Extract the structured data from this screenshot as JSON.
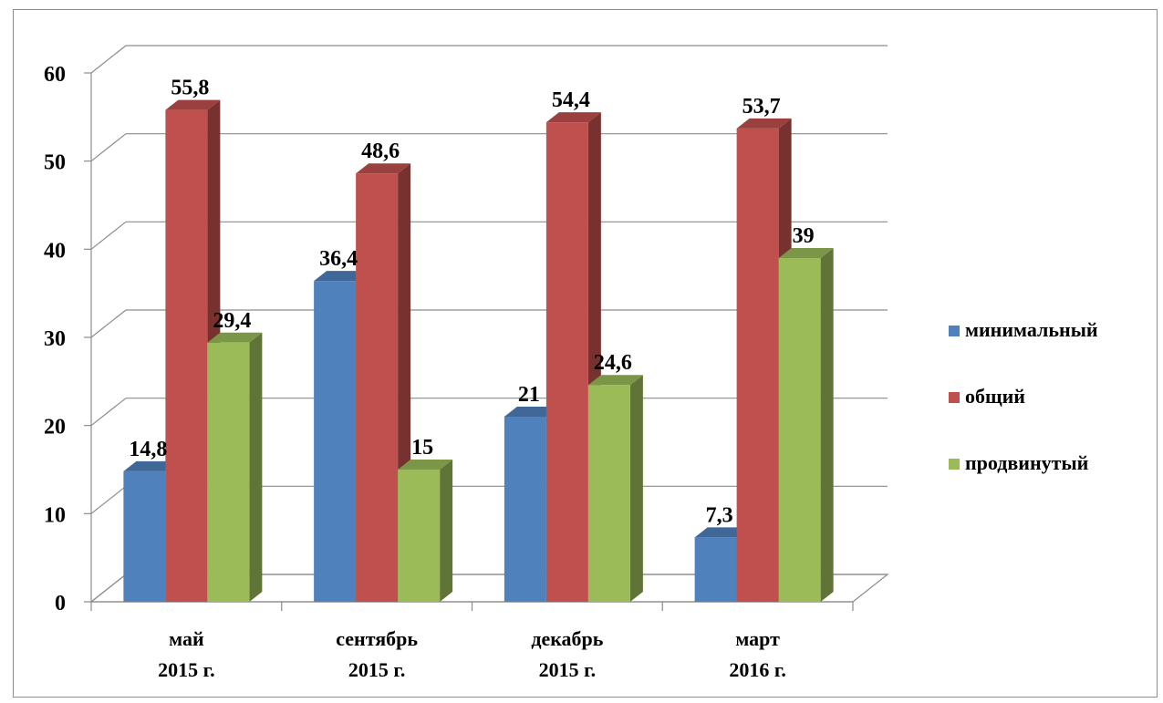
{
  "chart_data": {
    "type": "bar",
    "categories": [
      [
        "май",
        "2015 г."
      ],
      [
        "сентябрь",
        "2015 г."
      ],
      [
        "декабрь",
        "2015 г."
      ],
      [
        "март",
        "2016 г."
      ]
    ],
    "series": [
      {
        "name": "минимальный",
        "values": [
          14.8,
          36.4,
          21,
          7.3
        ],
        "labels": [
          "14,8",
          "36,4",
          "21",
          "7,3"
        ],
        "color": "#4f81bd"
      },
      {
        "name": "общий",
        "values": [
          55.8,
          48.6,
          54.4,
          53.7
        ],
        "labels": [
          "55,8",
          "48,6",
          "54,4",
          "53,7"
        ],
        "color": "#c0504d"
      },
      {
        "name": "продвинутый",
        "values": [
          29.4,
          15,
          24.6,
          39
        ],
        "labels": [
          "29,4",
          "15",
          "24,6",
          "39"
        ],
        "color": "#9bbb59"
      }
    ],
    "ylim": [
      0,
      60
    ],
    "yticks": [
      0,
      10,
      20,
      30,
      40,
      50,
      60
    ],
    "grid": true,
    "legend": "right",
    "style": "3d-clustered-column"
  }
}
